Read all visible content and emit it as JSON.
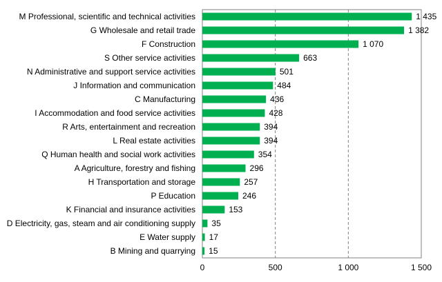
{
  "chart_data": {
    "type": "bar",
    "orientation": "horizontal",
    "categories": [
      "M Professional, scientific and technical activities",
      "G Wholesale and retail trade",
      "F Construction",
      "S Other service activities",
      "N Administrative and support service activities",
      "J Information and communication",
      "C Manufacturing",
      "I Accommodation and food service activities",
      "R Arts, entertainment and recreation",
      "L Real estate activities",
      "Q Human health and social work activities",
      "A Agriculture, forestry and fishing",
      "H Transportation and storage",
      "P Education",
      "K Financial and insurance activities",
      "D Electricity, gas, steam and air conditioning supply",
      "E Water supply",
      "B Mining and quarrying"
    ],
    "values": [
      1435,
      1382,
      1070,
      663,
      501,
      484,
      436,
      428,
      394,
      394,
      354,
      296,
      257,
      246,
      153,
      35,
      17,
      15
    ],
    "value_labels": [
      "1 435",
      "1 382",
      "1 070",
      "663",
      "501",
      "484",
      "436",
      "428",
      "394",
      "394",
      "354",
      "296",
      "257",
      "246",
      "153",
      "35",
      "17",
      "15"
    ],
    "xlim": [
      0,
      1500
    ],
    "xticks": [
      0,
      500,
      1000,
      1500
    ],
    "xtick_labels": [
      "0",
      "500",
      "1 000",
      "1 500"
    ],
    "grid": "vertical dashed",
    "bar_color": "#00b050",
    "title": "",
    "xlabel": "",
    "ylabel": ""
  }
}
